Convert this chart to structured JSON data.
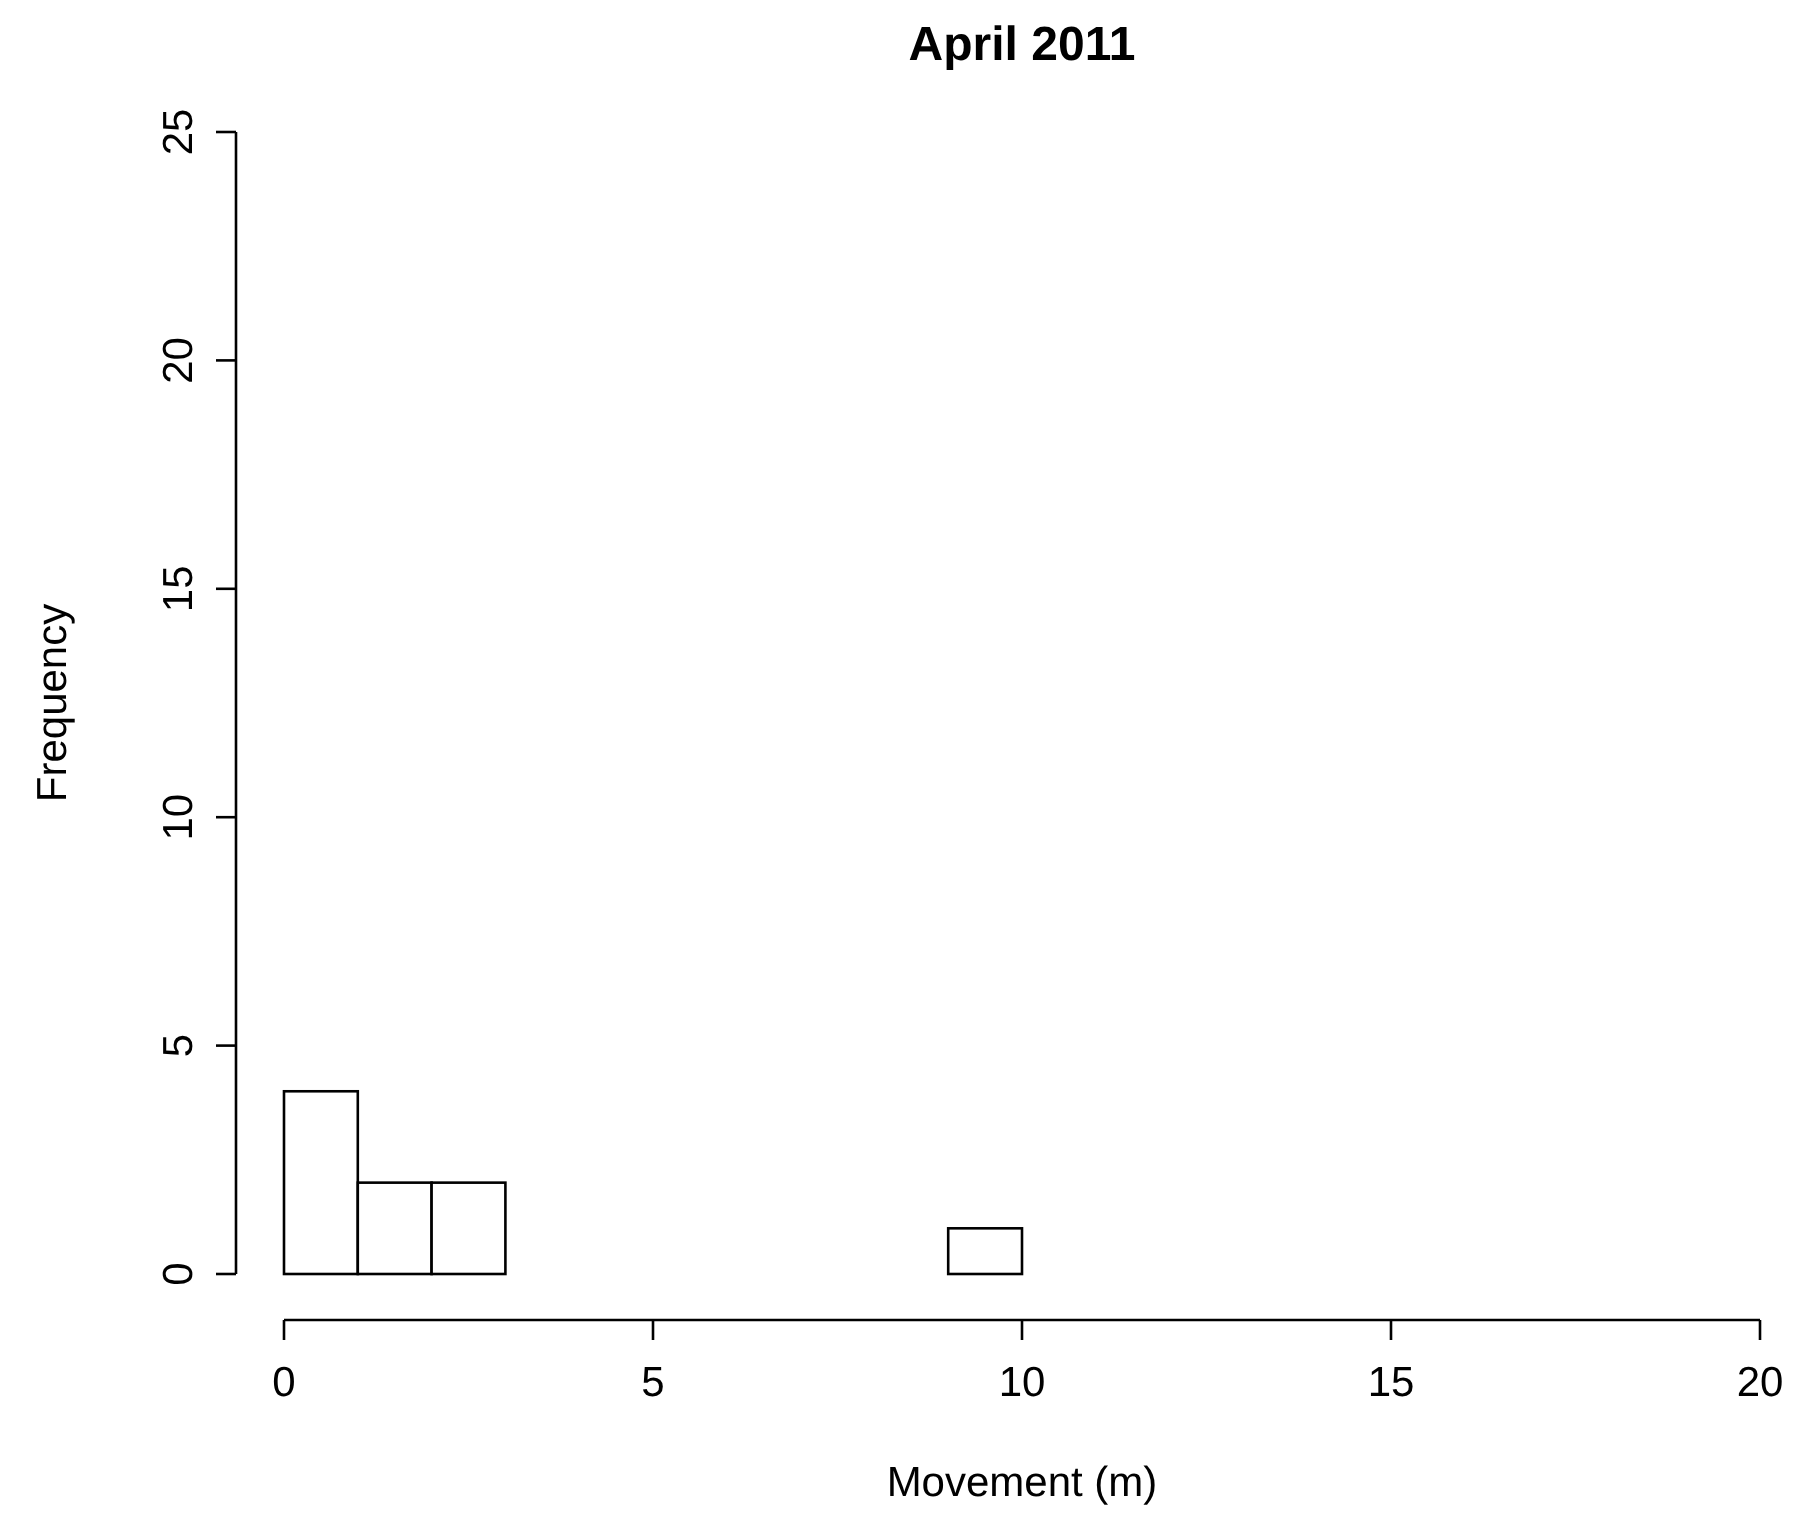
{
  "chart_data": {
    "type": "histogram",
    "title": "April 2011",
    "xlabel": "Movement (m)",
    "ylabel": "Frequency",
    "bins": [
      0,
      1,
      2,
      3,
      4,
      5,
      6,
      7,
      8,
      9,
      10,
      11,
      12,
      13,
      14,
      15,
      16,
      17,
      18,
      19,
      20
    ],
    "values": [
      4,
      2,
      2,
      0,
      0,
      0,
      0,
      0,
      0,
      1,
      0,
      0,
      0,
      0,
      0,
      0,
      0,
      0,
      0,
      0
    ],
    "color": "#ffffff",
    "xlim": [
      0,
      20
    ],
    "xticks": [
      0,
      5,
      10,
      15,
      20
    ],
    "ylim": [
      0,
      25
    ],
    "yticks": [
      0,
      5,
      10,
      15,
      20,
      25
    ],
    "grid": false
  }
}
